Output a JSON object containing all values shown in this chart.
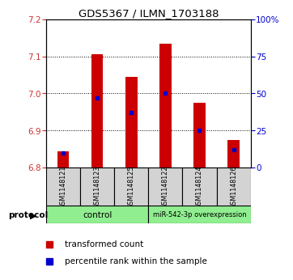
{
  "title": "GDS5367 / ILMN_1703188",
  "samples": [
    "GSM1148121",
    "GSM1148123",
    "GSM1148125",
    "GSM1148122",
    "GSM1148124",
    "GSM1148126"
  ],
  "bar_bottom": 6.8,
  "transformed_count": [
    6.845,
    7.105,
    7.045,
    7.135,
    6.975,
    6.875
  ],
  "percentile_rank": [
    10,
    47,
    37,
    50,
    25,
    12
  ],
  "ylim_left": [
    6.8,
    7.2
  ],
  "ylim_right": [
    0,
    100
  ],
  "yticks_left": [
    6.8,
    6.9,
    7.0,
    7.1,
    7.2
  ],
  "yticks_right": [
    0,
    25,
    50,
    75,
    100
  ],
  "bar_color": "#CC0000",
  "percentile_color": "#0000CC",
  "bg_color": "#ffffff",
  "label_color_left": "#CC3333",
  "label_color_right": "#0000CC",
  "sample_bg_color": "#D3D3D3",
  "group_bg_color": "#90EE90",
  "legend_red_label": "transformed count",
  "legend_blue_label": "percentile rank within the sample",
  "protocol_label": "protocol",
  "control_label": "control",
  "overexp_label": "miR-542-3p overexpression"
}
